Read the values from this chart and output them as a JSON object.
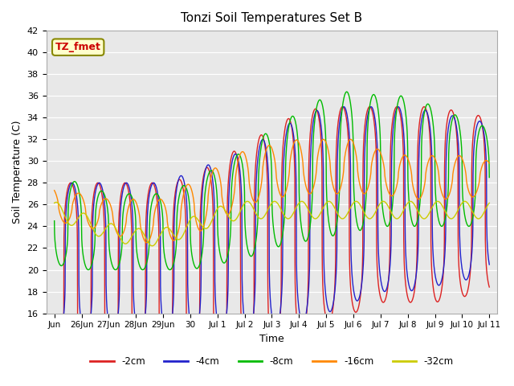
{
  "title": "Tonzi Soil Temperatures Set B",
  "xlabel": "Time",
  "ylabel": "Soil Temperature (C)",
  "ylim": [
    16,
    42
  ],
  "yticks": [
    16,
    18,
    20,
    22,
    24,
    26,
    28,
    30,
    32,
    34,
    36,
    38,
    40,
    42
  ],
  "annotation_text": "TZ_fmet",
  "annotation_color": "#cc0000",
  "annotation_bg": "#ffffcc",
  "bg_color": "#e8e8e8",
  "line_colors": {
    "-2cm": "#dd2222",
    "-4cm": "#2222cc",
    "-8cm": "#00bb00",
    "-16cm": "#ff8800",
    "-32cm": "#cccc00"
  },
  "tick_labels_display": [
    "Jun",
    "26Jun",
    "27Jun",
    "28Jun",
    "29Jun",
    "30",
    "Jul 1",
    "Jul 2",
    "Jul 3",
    "Jul 4",
    "Jul 5",
    "Jul 6",
    "Jul 7",
    "Jul 8",
    "Jul 9",
    "Jul 10",
    "Jul 11"
  ],
  "n_days": 16,
  "n_per_day": 144,
  "base_2cm": [
    19.5,
    19.5,
    19.5,
    19.5,
    19.5,
    19.5,
    20.5,
    21.5,
    22.5,
    24.0,
    25.0,
    25.5,
    26.0,
    26.0,
    26.0,
    26.0,
    26.0
  ],
  "amp_2cm": [
    8.5,
    8.5,
    8.5,
    8.5,
    8.5,
    9.0,
    9.5,
    10.0,
    10.5,
    10.5,
    10.0,
    9.5,
    9.0,
    9.0,
    9.0,
    8.5,
    8.0
  ],
  "base_4cm": [
    21.0,
    21.0,
    21.0,
    21.0,
    21.0,
    21.5,
    22.0,
    22.5,
    23.5,
    24.5,
    25.5,
    26.0,
    26.5,
    26.5,
    26.5,
    26.5,
    26.5
  ],
  "amp_4cm": [
    7.0,
    7.0,
    7.0,
    7.0,
    7.0,
    7.5,
    8.0,
    8.5,
    9.0,
    9.5,
    9.5,
    9.0,
    8.5,
    8.5,
    8.0,
    7.5,
    7.0
  ],
  "base_8cm": [
    24.5,
    24.0,
    23.5,
    23.5,
    23.5,
    24.0,
    25.0,
    26.0,
    27.5,
    28.5,
    29.5,
    30.0,
    30.0,
    30.0,
    29.5,
    29.0,
    28.5
  ],
  "amp_8cm": [
    4.0,
    4.0,
    3.5,
    3.5,
    3.5,
    4.0,
    4.5,
    5.0,
    5.5,
    6.0,
    6.5,
    6.5,
    6.0,
    6.0,
    5.5,
    5.0,
    4.5
  ],
  "base_16cm": [
    26.0,
    25.5,
    25.0,
    24.5,
    24.5,
    25.5,
    27.0,
    28.5,
    29.0,
    29.5,
    29.5,
    29.5,
    29.0,
    28.5,
    28.5,
    28.5,
    28.5
  ],
  "amp_16cm": [
    1.5,
    1.5,
    1.5,
    2.0,
    2.0,
    2.5,
    2.5,
    2.5,
    2.5,
    2.5,
    2.5,
    2.5,
    2.0,
    2.0,
    2.0,
    2.0,
    1.5
  ],
  "base_32cm": [
    25.5,
    24.5,
    23.5,
    23.0,
    23.0,
    24.0,
    25.0,
    25.5,
    25.5,
    25.5,
    25.5,
    25.5,
    25.5,
    25.5,
    25.5,
    25.5,
    25.5
  ],
  "amp_32cm": [
    0.8,
    0.8,
    0.8,
    0.8,
    0.8,
    0.8,
    0.8,
    0.8,
    0.8,
    0.8,
    0.8,
    0.8,
    0.8,
    0.8,
    0.8,
    0.8,
    0.8
  ],
  "phase_2cm": 0.35,
  "phase_4cm": 0.4,
  "phase_8cm": 0.5,
  "phase_16cm": 0.65,
  "phase_32cm": 0.85,
  "sharpness_2cm": 4.0,
  "sharpness_4cm": 3.5,
  "sharpness_8cm": 2.5,
  "sharpness_16cm": 1.5,
  "sharpness_32cm": 1.0
}
